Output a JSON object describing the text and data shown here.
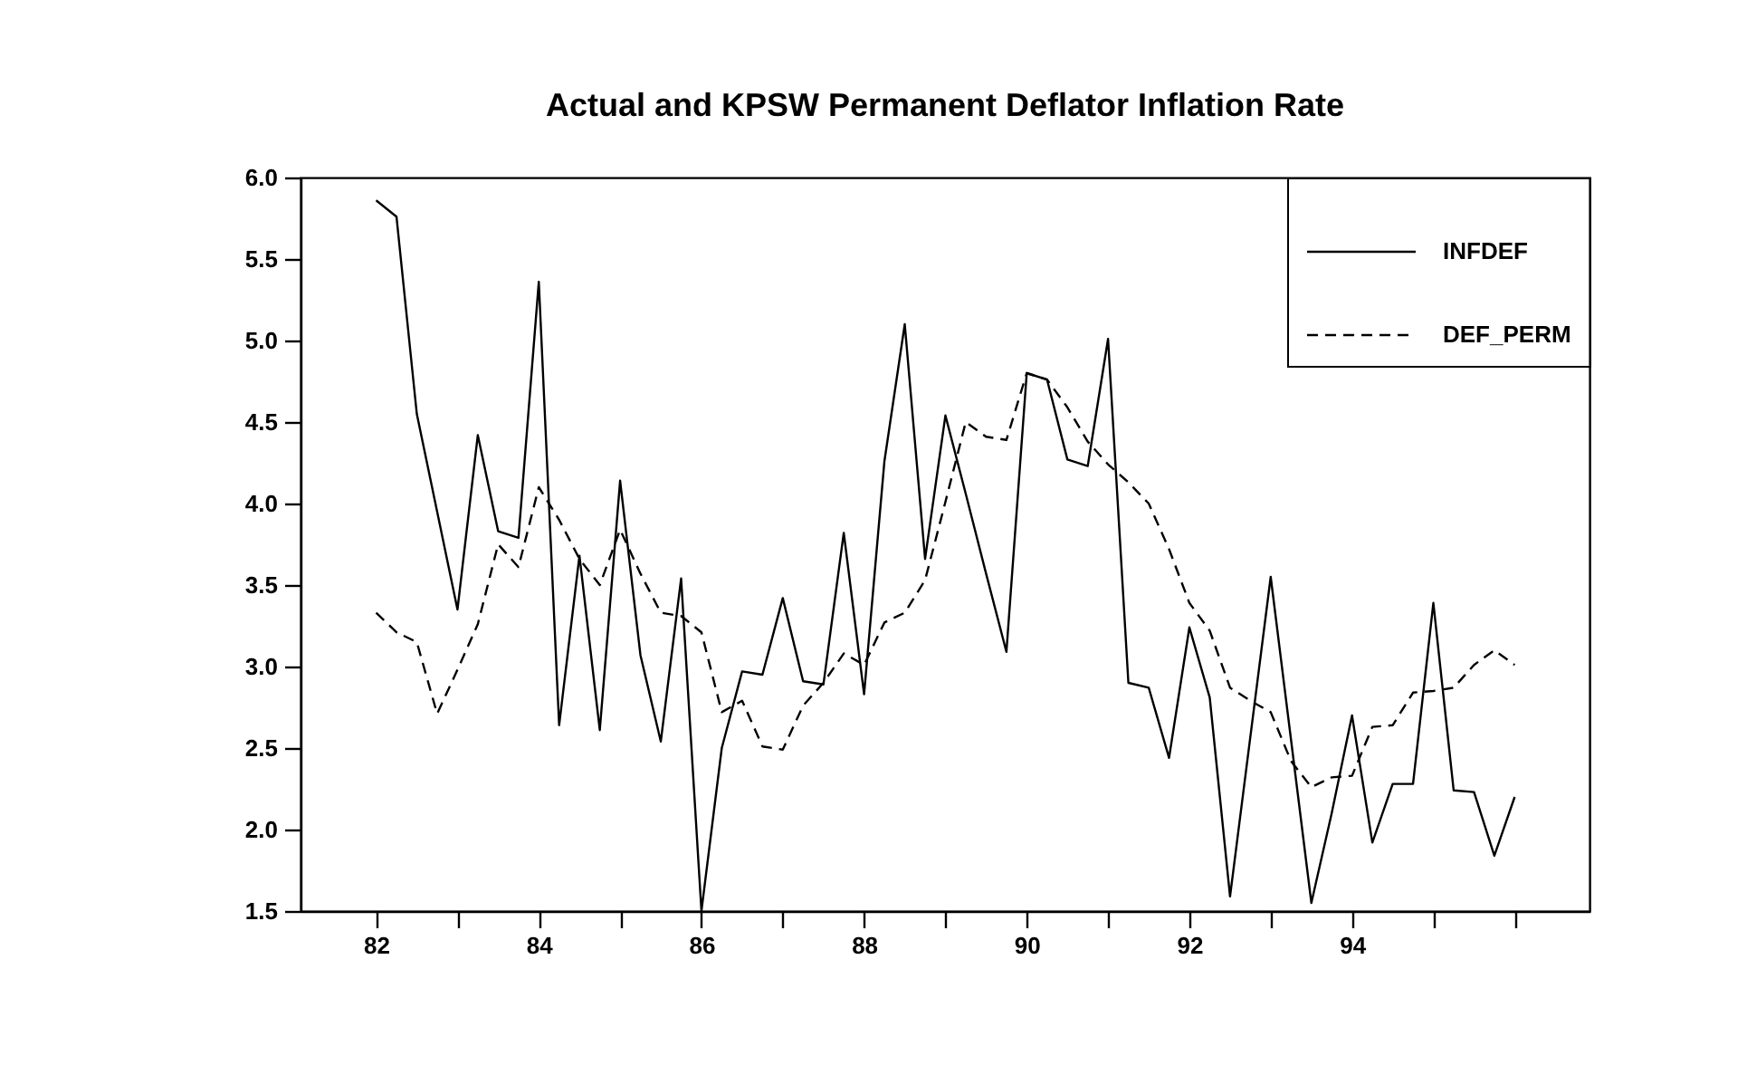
{
  "chart_data": {
    "type": "line",
    "title": "Actual and KPSW Permanent Deflator Inflation Rate",
    "x": [
      82,
      82.25,
      82.5,
      82.75,
      83,
      83.25,
      83.5,
      83.75,
      84,
      84.25,
      84.5,
      84.75,
      85,
      85.25,
      85.5,
      85.75,
      86,
      86.25,
      86.5,
      86.75,
      87,
      87.25,
      87.5,
      87.75,
      88,
      88.25,
      88.5,
      88.75,
      89,
      89.25,
      89.5,
      89.75,
      90,
      90.25,
      90.5,
      90.75,
      91,
      91.25,
      91.5,
      91.75,
      92,
      92.25,
      92.5,
      92.75,
      93,
      93.25,
      93.5,
      93.75,
      94,
      94.25,
      94.5,
      94.75,
      95,
      95.25,
      95.5,
      95.75,
      96
    ],
    "series": [
      {
        "name": "INFDEF",
        "color": "#000000",
        "line_style": "solid",
        "values": [
          5.86,
          5.76,
          4.55,
          3.95,
          3.35,
          4.42,
          3.83,
          3.79,
          5.36,
          2.64,
          3.68,
          2.61,
          4.14,
          3.07,
          2.54,
          3.54,
          1.5,
          2.5,
          2.97,
          2.95,
          3.42,
          2.91,
          2.89,
          3.82,
          2.83,
          4.26,
          5.1,
          3.66,
          4.54,
          4.06,
          3.57,
          3.09,
          4.8,
          4.76,
          4.27,
          4.23,
          5.01,
          2.9,
          2.87,
          2.44,
          3.24,
          2.81,
          1.59,
          2.57,
          3.55,
          2.55,
          1.55,
          2.1,
          2.7,
          1.92,
          2.28,
          2.28,
          3.39,
          2.24,
          2.23,
          1.84,
          2.2
        ]
      },
      {
        "name": "DEF_PERM",
        "color": "#000000",
        "line_style": "dashed",
        "values": [
          3.33,
          3.21,
          3.15,
          2.71,
          2.98,
          3.26,
          3.75,
          3.61,
          4.1,
          3.9,
          3.66,
          3.5,
          3.84,
          3.57,
          3.33,
          3.31,
          3.21,
          2.72,
          2.79,
          2.51,
          2.49,
          2.76,
          2.9,
          3.08,
          3.01,
          3.27,
          3.33,
          3.53,
          4.01,
          4.5,
          4.41,
          4.39,
          4.8,
          4.76,
          4.59,
          4.38,
          4.24,
          4.13,
          4.0,
          3.72,
          3.39,
          3.22,
          2.87,
          2.79,
          2.72,
          2.42,
          2.26,
          2.32,
          2.33,
          2.63,
          2.64,
          2.84,
          2.85,
          2.87,
          3.01,
          3.1,
          3.01
        ]
      }
    ],
    "xlim": [
      81.07,
      96.92
    ],
    "xticks": [
      {
        "value": 82,
        "label": "82"
      },
      {
        "value": 83,
        "label": null
      },
      {
        "value": 84,
        "label": "84"
      },
      {
        "value": 85,
        "label": null
      },
      {
        "value": 86,
        "label": "86"
      },
      {
        "value": 87,
        "label": null
      },
      {
        "value": 88,
        "label": "88"
      },
      {
        "value": 89,
        "label": null
      },
      {
        "value": 90,
        "label": "90"
      },
      {
        "value": 91,
        "label": null
      },
      {
        "value": 92,
        "label": "92"
      },
      {
        "value": 93,
        "label": null
      },
      {
        "value": 94,
        "label": "94"
      },
      {
        "value": 95,
        "label": null
      },
      {
        "value": 96,
        "label": null
      }
    ],
    "ylim": [
      1.5,
      6.0
    ],
    "yticks": [
      {
        "value": 1.5,
        "label": "1.5"
      },
      {
        "value": 2,
        "label": "2.0"
      },
      {
        "value": 2.5,
        "label": "2.5"
      },
      {
        "value": 3,
        "label": "3.0"
      },
      {
        "value": 3.5,
        "label": "3.5"
      },
      {
        "value": 4,
        "label": "4.0"
      },
      {
        "value": 4.5,
        "label": "4.5"
      },
      {
        "value": 5,
        "label": "5.0"
      },
      {
        "value": 5.5,
        "label": "5.5"
      },
      {
        "value": 6,
        "label": "6.0"
      }
    ],
    "legend": "top right"
  }
}
